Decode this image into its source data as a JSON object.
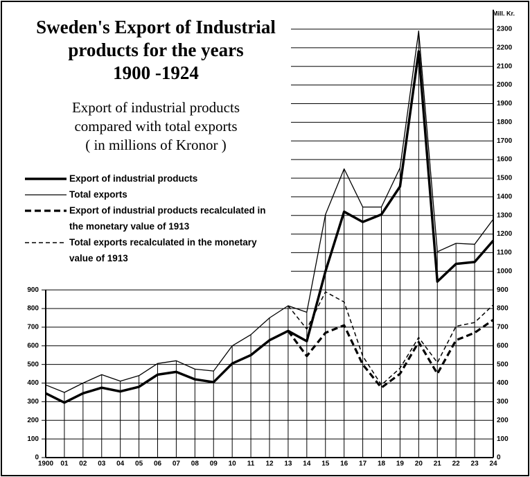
{
  "chart_data": {
    "type": "line",
    "title": [
      "Sweden's Export of Industrial",
      "products for the years",
      "1900 -1924"
    ],
    "subtitle": [
      "Export of industrial products",
      "compared with total exports",
      "( in millions of Kronor )"
    ],
    "y_axis_label": "Mill. Kr.",
    "categories": [
      "1900",
      "01",
      "02",
      "03",
      "04",
      "05",
      "06",
      "07",
      "08",
      "09",
      "10",
      "11",
      "12",
      "13",
      "14",
      "15",
      "16",
      "17",
      "18",
      "19",
      "20",
      "21",
      "22",
      "23",
      "24"
    ],
    "series": [
      {
        "name": "Export of industrial products",
        "color": "#000",
        "width": 3.5,
        "dashed": false,
        "values": [
          345,
          295,
          345,
          375,
          355,
          380,
          445,
          460,
          420,
          405,
          505,
          550,
          630,
          680,
          625,
          1000,
          1320,
          1265,
          1305,
          1455,
          2180,
          945,
          1040,
          1050,
          1165
        ]
      },
      {
        "name": "Total exports",
        "color": "#000",
        "width": 1.3,
        "dashed": false,
        "values": [
          390,
          350,
          400,
          445,
          410,
          440,
          505,
          520,
          475,
          465,
          600,
          660,
          750,
          815,
          780,
          1305,
          1550,
          1345,
          1345,
          1555,
          2290,
          1105,
          1150,
          1145,
          1280
        ]
      },
      {
        "name": "Export of industrial products recalculated in the monetary value of 1913",
        "color": "#000",
        "width": 3.2,
        "dashed": true,
        "values": [
          null,
          null,
          null,
          null,
          null,
          null,
          null,
          null,
          null,
          null,
          null,
          null,
          null,
          680,
          545,
          670,
          710,
          500,
          375,
          450,
          620,
          450,
          630,
          670,
          740
        ]
      },
      {
        "name": "Total exports recalculated in the monetary value of 1913",
        "color": "#000",
        "width": 1.5,
        "dashed": true,
        "values": [
          null,
          null,
          null,
          null,
          null,
          null,
          null,
          null,
          null,
          null,
          null,
          null,
          null,
          815,
          690,
          890,
          835,
          545,
          390,
          480,
          645,
          510,
          705,
          725,
          820
        ]
      }
    ],
    "ylim": [
      0,
      2300
    ],
    "yticks": [
      0,
      100,
      200,
      300,
      400,
      500,
      600,
      700,
      800,
      900,
      1000,
      1100,
      1200,
      1300,
      1400,
      1500,
      1600,
      1700,
      1800,
      1900,
      2000,
      2100,
      2200,
      2300
    ],
    "y2lim": [
      0,
      2300
    ],
    "y2ticks": [
      0,
      100,
      200,
      300,
      400,
      500,
      600,
      700,
      800,
      900
    ],
    "grid": true
  }
}
